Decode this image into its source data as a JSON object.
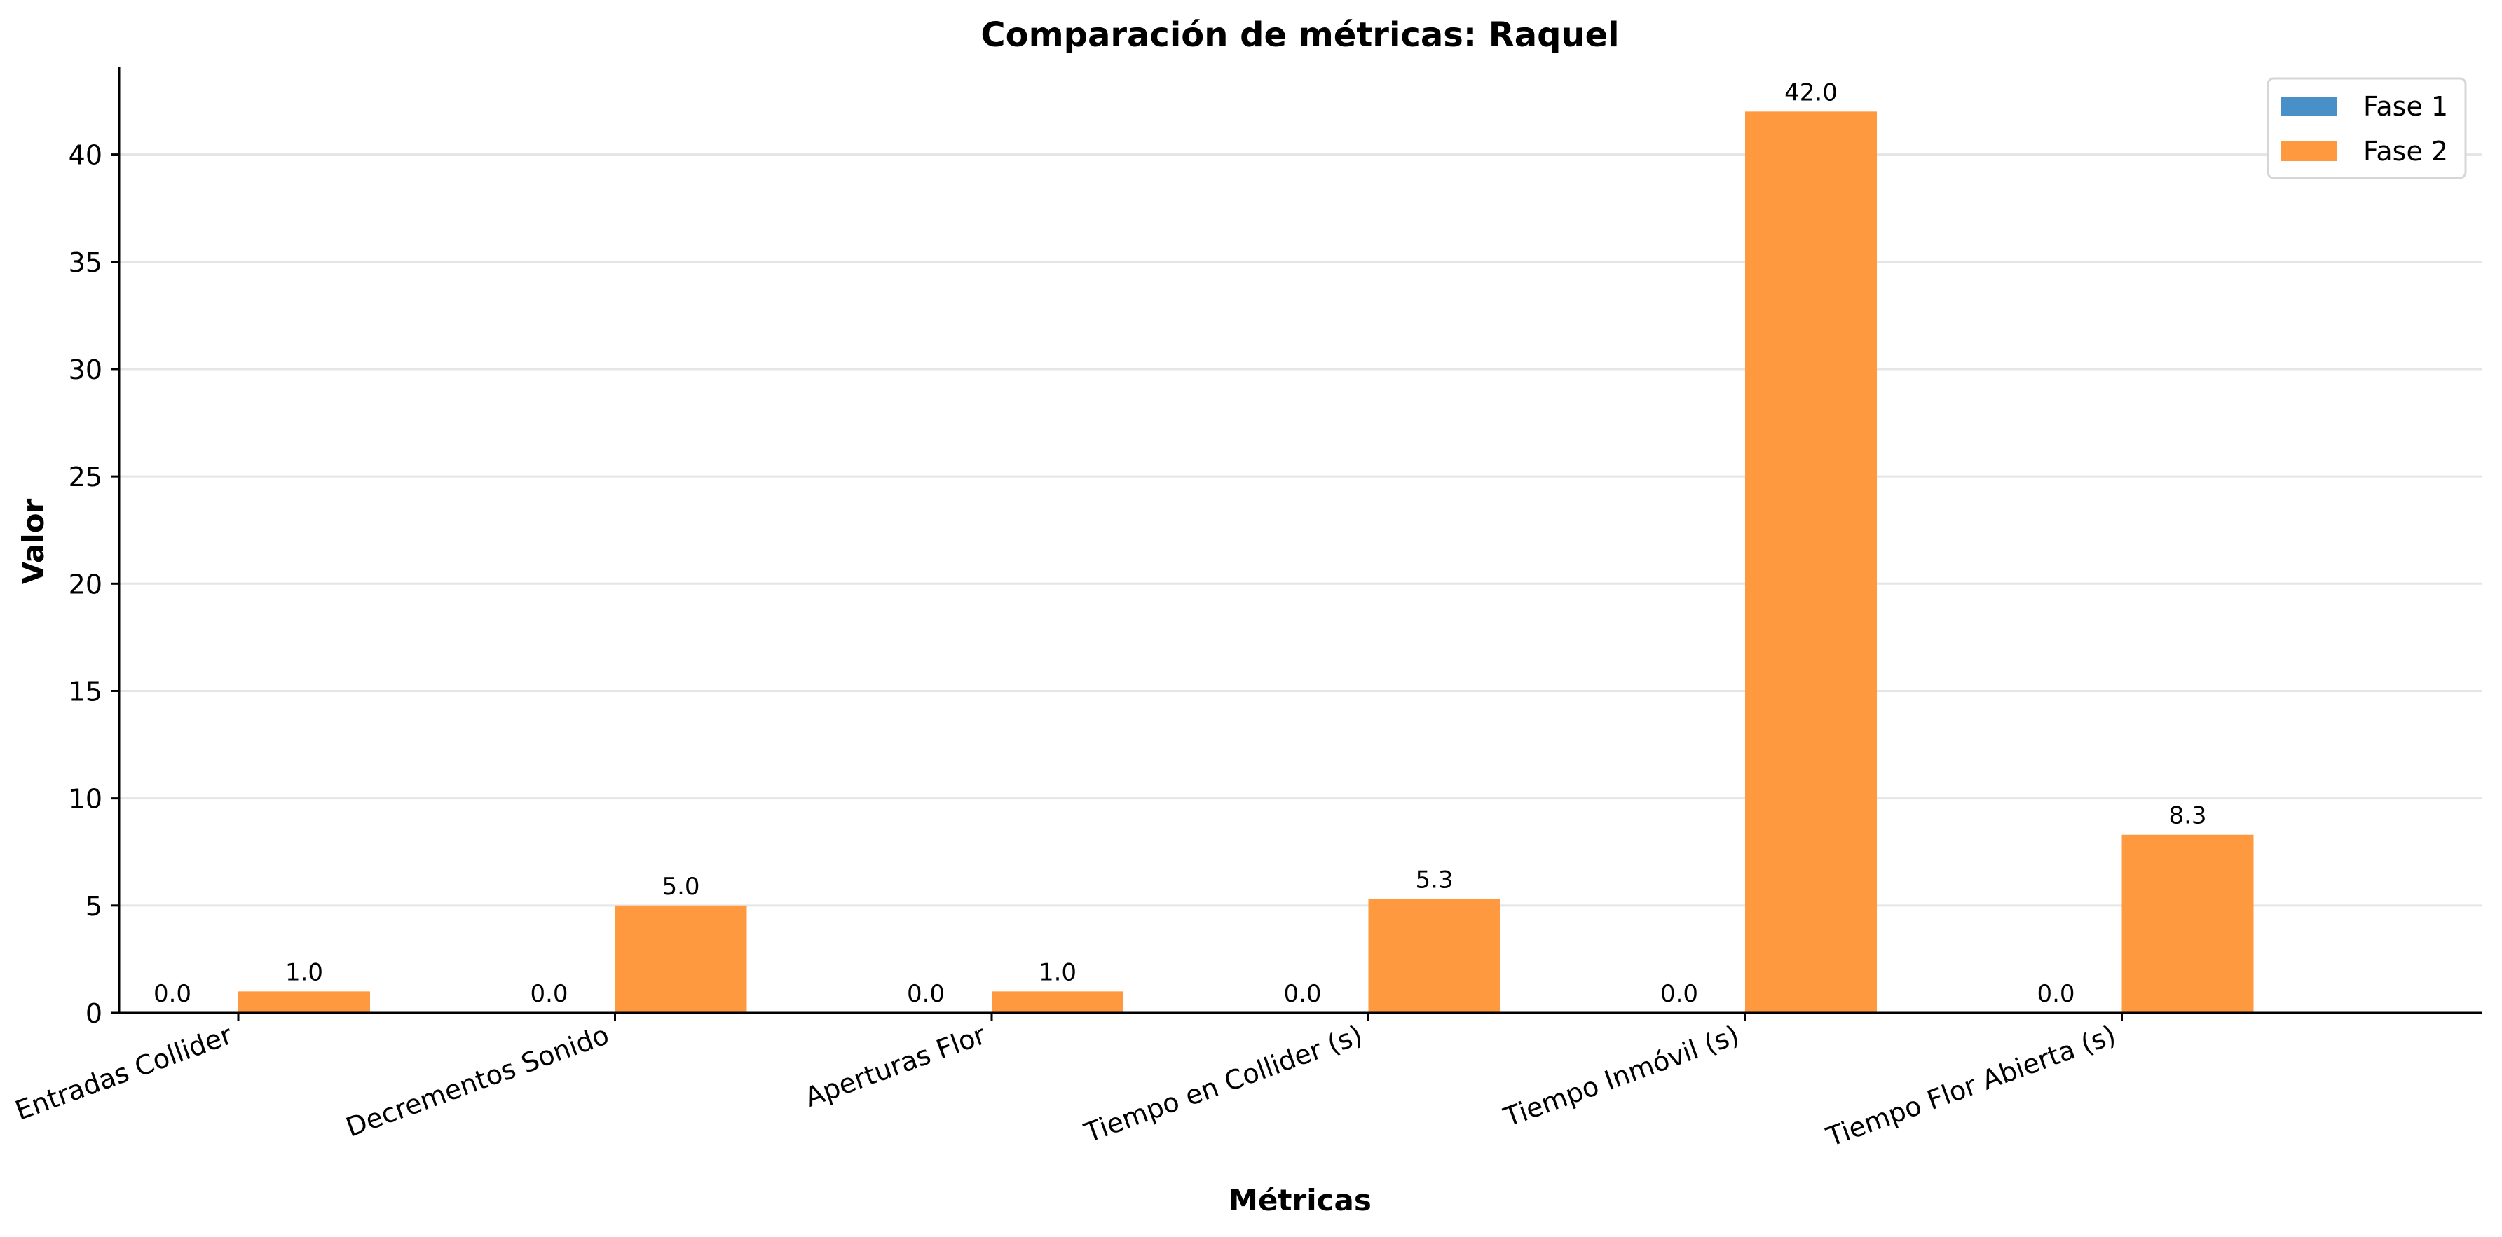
{
  "chart_data": {
    "type": "bar",
    "title": "Comparación de métricas: Raquel",
    "xlabel": "Métricas",
    "ylabel": "Valor",
    "categories": [
      "Entradas Collider",
      "Decrementos Sonido",
      "Aperturas Flor",
      "Tiempo en Collider (s)",
      "Tiempo Inmóvil (s)",
      "Tiempo Flor Abierta (s)"
    ],
    "series": [
      {
        "name": "Fase 1",
        "color": "#4a90c8",
        "values": [
          0.0,
          0.0,
          0.0,
          0.0,
          0.0,
          0.0
        ],
        "labels": [
          "0.0",
          "0.0",
          "0.0",
          "0.0",
          "0.0",
          "0.0"
        ]
      },
      {
        "name": "Fase 2",
        "color": "#ff9940",
        "values": [
          1.0,
          5.0,
          1.0,
          5.3,
          42.0,
          8.3
        ],
        "labels": [
          "1.0",
          "5.0",
          "1.0",
          "5.3",
          "42.0",
          "8.3"
        ]
      }
    ],
    "ylim": [
      0,
      44.1
    ],
    "yticks": [
      0,
      5,
      10,
      15,
      20,
      25,
      30,
      35,
      40
    ],
    "grid": "horizontal",
    "legend_position": "top-right"
  }
}
